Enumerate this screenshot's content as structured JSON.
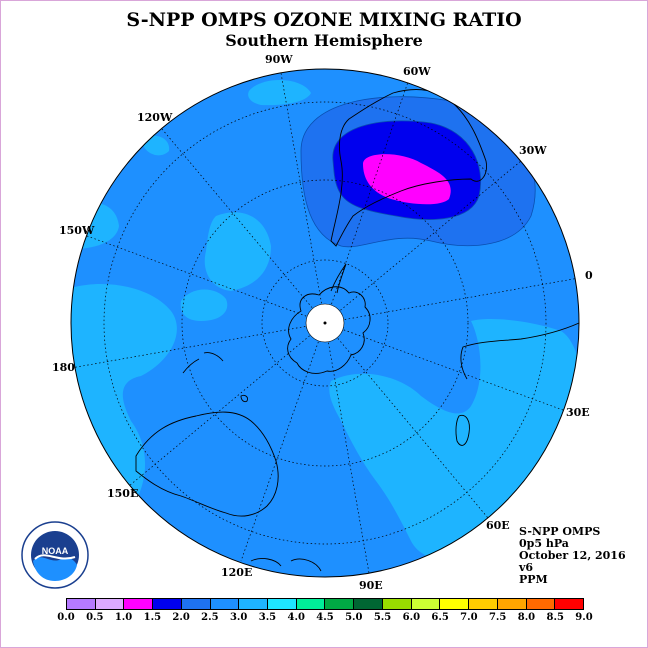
{
  "title": "S-NPP OMPS OZONE MIXING RATIO",
  "subtitle": "Southern Hemisphere",
  "info": [
    "S-NPP OMPS",
    "0p5 hPa",
    "October 12, 2016",
    "v6",
    "PPM"
  ],
  "longitude_labels": [
    "90W",
    "60W",
    "30W",
    "0",
    "30E",
    "60E",
    "90E",
    "120E",
    "150E",
    "180",
    "150W",
    "120W"
  ],
  "colorbar": {
    "ticks": [
      "0.0",
      "0.5",
      "1.0",
      "1.5",
      "2.0",
      "2.5",
      "3.0",
      "3.5",
      "4.0",
      "4.5",
      "5.0",
      "5.5",
      "6.0",
      "6.5",
      "7.0",
      "7.5",
      "8.0",
      "8.5",
      "9.0"
    ],
    "colors": [
      "#b57aff",
      "#ddaaff",
      "#ff00ff",
      "#0000ee",
      "#1e72f0",
      "#1e90ff",
      "#1eb4ff",
      "#1ee6ff",
      "#00ee99",
      "#00aa44",
      "#006633",
      "#99dd00",
      "#ccff33",
      "#ffff00",
      "#ffcc00",
      "#ffa500",
      "#ff6a00",
      "#ff0000",
      "#8b5a2b"
    ]
  },
  "logo_text": "NOAA",
  "colors": {
    "disk_base": "#1e90ff",
    "level_2_0": "#1e72f0",
    "level_3_0": "#1eb4ff",
    "high": "#0000ee",
    "max": "#ff00ff",
    "page_border": "#d9a6d9"
  }
}
